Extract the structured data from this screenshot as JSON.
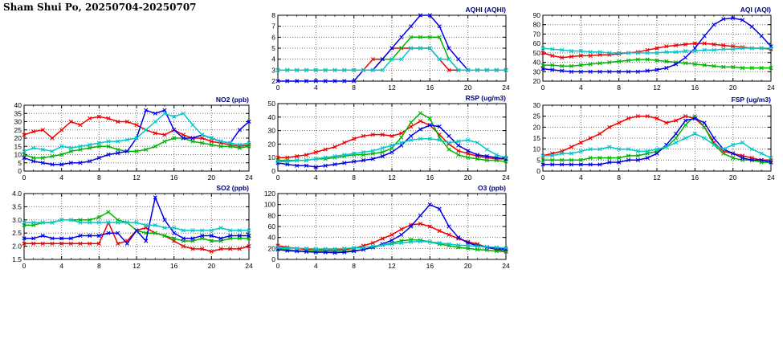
{
  "page": {
    "title": "Sham Shui Po, 20250704-20250707"
  },
  "colors": {
    "title": "#000080",
    "grid": "#707070",
    "axis": "#000000"
  },
  "chart_data": [
    {
      "id": "aqhi",
      "type": "line",
      "title": "AQHI (AQHI)",
      "xlabel": "",
      "ylabel": "",
      "x_range": [
        0,
        24
      ],
      "x_tick_step": 4,
      "ylim": [
        2,
        8
      ],
      "y_tick_step": 1,
      "y_decimals": 0,
      "grid": true,
      "legend": "none",
      "series": [
        {
          "name": "red",
          "color": "#ee0000",
          "values": [
            3,
            3,
            3,
            3,
            3,
            3,
            3,
            3,
            3,
            3,
            4,
            4,
            5,
            5,
            5,
            5,
            5,
            4,
            3,
            3,
            3,
            3,
            3,
            3,
            3
          ]
        },
        {
          "name": "green",
          "color": "#00b400",
          "values": [
            3,
            3,
            3,
            3,
            3,
            3,
            3,
            3,
            3,
            3,
            3,
            4,
            4,
            5,
            6,
            6,
            6,
            6,
            4,
            3,
            3,
            3,
            3,
            3,
            3
          ]
        },
        {
          "name": "blue",
          "color": "#0000e8",
          "values": [
            2,
            2,
            2,
            2,
            2,
            2,
            2,
            2,
            2,
            3,
            3,
            4,
            5,
            6,
            7,
            8,
            8,
            7,
            5,
            4,
            3,
            3,
            3,
            3,
            3
          ]
        },
        {
          "name": "cyan",
          "color": "#00c8c8",
          "values": [
            3,
            3,
            3,
            3,
            3,
            3,
            3,
            3,
            3,
            3,
            3,
            3,
            4,
            4,
            5,
            5,
            5,
            4,
            4,
            3,
            3,
            3,
            3,
            3,
            3
          ]
        }
      ]
    },
    {
      "id": "aqi",
      "type": "line",
      "title": "AQI (AQI)",
      "xlabel": "",
      "ylabel": "",
      "x_range": [
        0,
        24
      ],
      "x_tick_step": 4,
      "ylim": [
        20,
        90
      ],
      "y_tick_step": 10,
      "y_decimals": 0,
      "grid": true,
      "legend": "none",
      "series": [
        {
          "name": "red",
          "color": "#ee0000",
          "values": [
            50,
            47,
            45,
            46,
            47,
            47,
            48,
            48,
            49,
            50,
            51,
            53,
            55,
            57,
            58,
            59,
            60,
            60,
            59,
            58,
            57,
            56,
            55,
            55,
            54
          ]
        },
        {
          "name": "green",
          "color": "#00b400",
          "values": [
            37,
            37,
            36,
            36,
            37,
            38,
            39,
            40,
            41,
            42,
            43,
            43,
            42,
            41,
            40,
            39,
            38,
            37,
            36,
            35,
            35,
            34,
            34,
            34,
            34
          ]
        },
        {
          "name": "blue",
          "color": "#0000e8",
          "values": [
            33,
            32,
            31,
            30,
            30,
            30,
            30,
            30,
            30,
            30,
            30,
            31,
            32,
            34,
            38,
            45,
            55,
            68,
            80,
            86,
            87,
            85,
            78,
            68,
            57
          ]
        },
        {
          "name": "cyan",
          "color": "#00c8c8",
          "values": [
            55,
            54,
            53,
            52,
            52,
            51,
            51,
            50,
            50,
            50,
            50,
            50,
            50,
            51,
            51,
            52,
            52,
            53,
            53,
            54,
            54,
            55,
            55,
            55,
            55
          ]
        }
      ]
    },
    {
      "id": "no2",
      "type": "line",
      "title": "NO2 (ppb)",
      "xlabel": "",
      "ylabel": "",
      "x_range": [
        0,
        24
      ],
      "x_tick_step": 4,
      "ylim": [
        0,
        40
      ],
      "y_tick_step": 5,
      "y_decimals": 0,
      "grid": true,
      "legend": "none",
      "series": [
        {
          "name": "red",
          "color": "#ee0000",
          "values": [
            22,
            24,
            25,
            20,
            25,
            30,
            28,
            32,
            33,
            32,
            30,
            30,
            28,
            25,
            23,
            22,
            25,
            22,
            20,
            20,
            18,
            17,
            16,
            15,
            16
          ]
        },
        {
          "name": "green",
          "color": "#00b400",
          "values": [
            10,
            8,
            8,
            9,
            10,
            12,
            13,
            14,
            15,
            15,
            13,
            12,
            12,
            13,
            15,
            18,
            20,
            20,
            18,
            17,
            16,
            15,
            15,
            14,
            15
          ]
        },
        {
          "name": "blue",
          "color": "#0000e8",
          "values": [
            8,
            6,
            5,
            4,
            4,
            5,
            5,
            6,
            8,
            10,
            11,
            12,
            20,
            37,
            35,
            37,
            25,
            20,
            20,
            22,
            20,
            18,
            17,
            25,
            30
          ]
        },
        {
          "name": "cyan",
          "color": "#00c8c8",
          "values": [
            12,
            14,
            13,
            12,
            15,
            14,
            15,
            16,
            17,
            18,
            18,
            19,
            20,
            25,
            30,
            35,
            33,
            35,
            28,
            22,
            20,
            18,
            17,
            16,
            17
          ]
        }
      ]
    },
    {
      "id": "rsp",
      "type": "line",
      "title": "RSP (ug/m3)",
      "xlabel": "",
      "ylabel": "",
      "x_range": [
        0,
        24
      ],
      "x_tick_step": 4,
      "ylim": [
        0,
        50
      ],
      "y_tick_step": 10,
      "y_decimals": 0,
      "grid": true,
      "legend": "none",
      "series": [
        {
          "name": "red",
          "color": "#ee0000",
          "values": [
            10,
            10,
            11,
            12,
            14,
            16,
            18,
            21,
            24,
            26,
            27,
            27,
            26,
            28,
            33,
            37,
            34,
            27,
            20,
            15,
            13,
            11,
            10,
            9,
            9
          ]
        },
        {
          "name": "green",
          "color": "#00b400",
          "values": [
            8,
            8,
            8,
            8,
            9,
            9,
            10,
            11,
            12,
            12,
            13,
            14,
            17,
            25,
            36,
            43,
            39,
            25,
            16,
            12,
            10,
            9,
            8,
            8,
            7
          ]
        },
        {
          "name": "blue",
          "color": "#0000e8",
          "values": [
            6,
            5,
            4,
            4,
            3,
            4,
            5,
            6,
            7,
            8,
            9,
            11,
            14,
            19,
            26,
            31,
            34,
            33,
            26,
            19,
            15,
            12,
            11,
            10,
            9
          ]
        },
        {
          "name": "cyan",
          "color": "#00c8c8",
          "values": [
            7,
            7,
            8,
            8,
            9,
            10,
            11,
            12,
            13,
            14,
            15,
            17,
            19,
            21,
            23,
            24,
            24,
            23,
            21,
            22,
            23,
            21,
            16,
            12,
            10
          ]
        }
      ]
    },
    {
      "id": "fsp",
      "type": "line",
      "title": "FSP (ug/m3)",
      "xlabel": "",
      "ylabel": "",
      "x_range": [
        0,
        24
      ],
      "x_tick_step": 4,
      "ylim": [
        0,
        30
      ],
      "y_tick_step": 5,
      "y_decimals": 0,
      "grid": true,
      "legend": "none",
      "series": [
        {
          "name": "red",
          "color": "#ee0000",
          "values": [
            7,
            8,
            9,
            11,
            13,
            15,
            17,
            20,
            22,
            24,
            25,
            25,
            24,
            22,
            23,
            25,
            24,
            20,
            13,
            9,
            8,
            7,
            6,
            5,
            5
          ]
        },
        {
          "name": "green",
          "color": "#00b400",
          "values": [
            5,
            5,
            5,
            5,
            5,
            6,
            6,
            6,
            6,
            7,
            7,
            8,
            9,
            11,
            15,
            21,
            25,
            20,
            12,
            8,
            6,
            5,
            5,
            4,
            4
          ]
        },
        {
          "name": "blue",
          "color": "#0000e8",
          "values": [
            3,
            3,
            3,
            3,
            3,
            3,
            3,
            4,
            4,
            5,
            5,
            6,
            8,
            12,
            17,
            23,
            24,
            22,
            15,
            10,
            8,
            6,
            5,
            5,
            4
          ]
        },
        {
          "name": "cyan",
          "color": "#00c8c8",
          "values": [
            7,
            7,
            8,
            8,
            9,
            10,
            10,
            11,
            10,
            10,
            9,
            9,
            10,
            11,
            13,
            15,
            17,
            15,
            12,
            10,
            12,
            13,
            10,
            8,
            6
          ]
        }
      ]
    },
    {
      "id": "so2",
      "type": "line",
      "title": "SO2 (ppb)",
      "xlabel": "",
      "ylabel": "",
      "x_range": [
        0,
        24
      ],
      "x_tick_step": 4,
      "ylim": [
        1.5,
        4.0
      ],
      "y_tick_step": 0.5,
      "y_decimals": 1,
      "grid": true,
      "legend": "none",
      "series": [
        {
          "name": "red",
          "color": "#ee0000",
          "values": [
            2.1,
            2.1,
            2.1,
            2.1,
            2.1,
            2.1,
            2.1,
            2.1,
            2.1,
            2.9,
            2.1,
            2.2,
            2.6,
            2.7,
            2.5,
            2.4,
            2.2,
            2.0,
            1.9,
            1.9,
            1.8,
            1.9,
            1.9,
            1.9,
            2.0
          ]
        },
        {
          "name": "green",
          "color": "#00b400",
          "values": [
            2.8,
            2.8,
            2.9,
            2.9,
            3.0,
            3.0,
            3.0,
            3.0,
            3.1,
            3.3,
            3.0,
            2.9,
            2.6,
            2.5,
            2.5,
            2.4,
            2.3,
            2.2,
            2.2,
            2.3,
            2.2,
            2.2,
            2.3,
            2.3,
            2.3
          ]
        },
        {
          "name": "blue",
          "color": "#0000e8",
          "values": [
            2.3,
            2.3,
            2.4,
            2.3,
            2.3,
            2.3,
            2.4,
            2.4,
            2.4,
            2.5,
            2.5,
            2.1,
            2.6,
            2.2,
            3.85,
            3.0,
            2.5,
            2.3,
            2.3,
            2.4,
            2.4,
            2.3,
            2.4,
            2.4,
            2.4
          ]
        },
        {
          "name": "cyan",
          "color": "#00c8c8",
          "values": [
            2.9,
            2.9,
            2.9,
            2.9,
            3.0,
            3.0,
            2.9,
            2.9,
            2.9,
            2.9,
            2.9,
            2.9,
            2.9,
            2.8,
            2.8,
            2.7,
            2.7,
            2.6,
            2.6,
            2.6,
            2.6,
            2.7,
            2.6,
            2.6,
            2.6
          ]
        }
      ]
    },
    {
      "id": "o3",
      "type": "line",
      "title": "O3 (ppb)",
      "xlabel": "",
      "ylabel": "",
      "x_range": [
        0,
        24
      ],
      "x_tick_step": 4,
      "ylim": [
        0,
        120
      ],
      "y_tick_step": 20,
      "y_decimals": 0,
      "grid": true,
      "legend": "none",
      "series": [
        {
          "name": "red",
          "color": "#ee0000",
          "values": [
            25,
            22,
            20,
            18,
            18,
            17,
            17,
            18,
            20,
            25,
            30,
            38,
            45,
            55,
            63,
            65,
            60,
            52,
            45,
            38,
            32,
            28,
            22,
            18,
            15
          ]
        },
        {
          "name": "green",
          "color": "#00b400",
          "values": [
            20,
            18,
            16,
            15,
            15,
            14,
            14,
            15,
            16,
            18,
            22,
            26,
            30,
            34,
            36,
            35,
            32,
            28,
            25,
            22,
            20,
            18,
            17,
            15,
            14
          ]
        },
        {
          "name": "blue",
          "color": "#0000e8",
          "values": [
            18,
            16,
            15,
            14,
            13,
            13,
            12,
            13,
            15,
            18,
            22,
            28,
            35,
            45,
            60,
            80,
            100,
            92,
            60,
            40,
            30,
            25,
            22,
            20,
            18
          ]
        },
        {
          "name": "cyan",
          "color": "#00c8c8",
          "values": [
            22,
            21,
            20,
            20,
            19,
            19,
            19,
            20,
            21,
            22,
            24,
            26,
            28,
            30,
            32,
            33,
            32,
            30,
            28,
            26,
            25,
            24,
            23,
            22,
            21
          ]
        }
      ]
    }
  ]
}
